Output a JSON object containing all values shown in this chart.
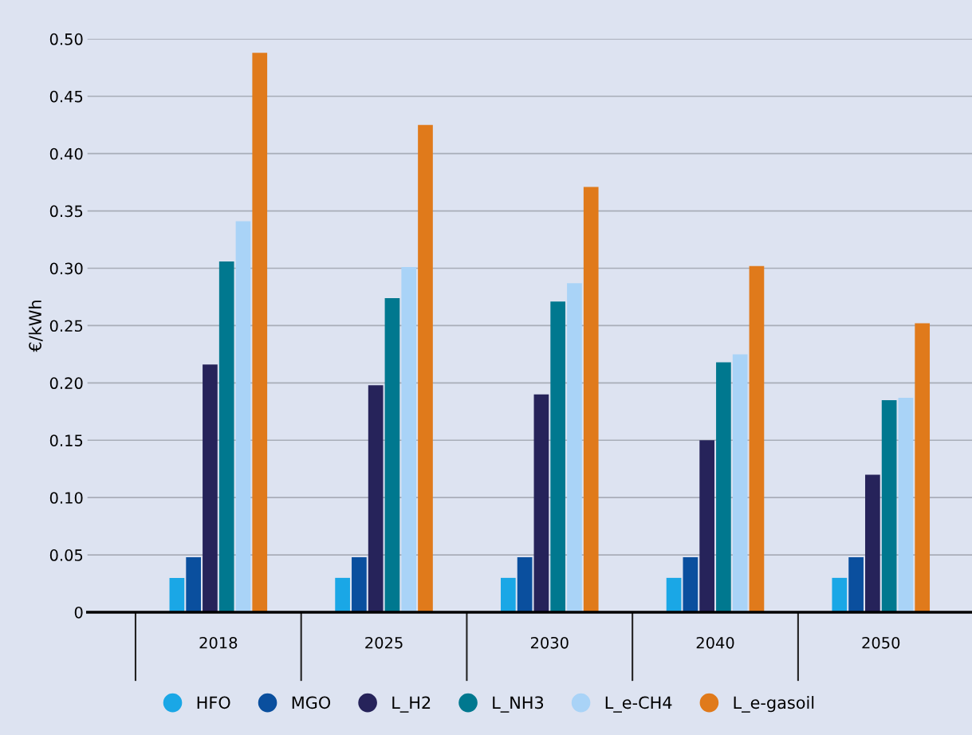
{
  "chart_data": {
    "type": "bar",
    "ylabel": "€/kWh",
    "categories": [
      "2018",
      "2025",
      "2030",
      "2040",
      "2050"
    ],
    "series": [
      {
        "name": "HFO",
        "color": "#1aa7e6",
        "values": [
          0.03,
          0.03,
          0.03,
          0.03,
          0.03
        ]
      },
      {
        "name": "MGO",
        "color": "#0a4f9e",
        "values": [
          0.048,
          0.048,
          0.048,
          0.048,
          0.048
        ]
      },
      {
        "name": "L_H2",
        "color": "#26235a",
        "values": [
          0.216,
          0.198,
          0.19,
          0.15,
          0.12
        ]
      },
      {
        "name": "L_NH3",
        "color": "#00788f",
        "values": [
          0.306,
          0.274,
          0.271,
          0.218,
          0.185
        ]
      },
      {
        "name": "L_e-CH4",
        "color": "#a9d3f7",
        "values": [
          0.341,
          0.301,
          0.287,
          0.225,
          0.187
        ]
      },
      {
        "name": "L_e-gasoil",
        "color": "#e07a1b",
        "values": [
          0.488,
          0.425,
          0.371,
          0.302,
          0.252
        ]
      }
    ],
    "ylim": [
      0,
      0.5
    ],
    "yticks": [
      {
        "value": 0,
        "label": "0"
      },
      0.05,
      {
        "value": 0.1,
        "label": "0.10"
      },
      0.15,
      {
        "value": 0.2,
        "label": "0.20"
      },
      0.25,
      {
        "value": 0.3,
        "label": "0.30"
      },
      0.35,
      {
        "value": 0.4,
        "label": "0.40"
      },
      0.45,
      {
        "value": 0.5,
        "label": "0.50"
      }
    ],
    "grid": "y",
    "legend": "bottom"
  }
}
